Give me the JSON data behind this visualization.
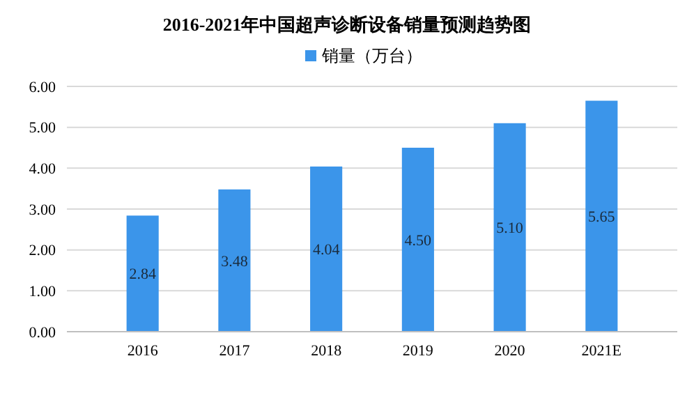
{
  "chart_data": {
    "type": "bar",
    "title": "2016-2021年中国超声诊断设备销量预测趋势图",
    "categories": [
      "2016",
      "2017",
      "2018",
      "2019",
      "2020",
      "2021E"
    ],
    "series": [
      {
        "name": "销量（万台）",
        "color": "#3b95ea",
        "values": [
          2.84,
          3.48,
          4.04,
          4.5,
          5.1,
          5.65
        ],
        "value_labels": [
          "2.84",
          "3.48",
          "4.04",
          "4.50",
          "5.10",
          "5.65"
        ]
      }
    ],
    "ylim": [
      0,
      6
    ],
    "yticks": [
      {
        "value": 0,
        "label": "0.00"
      },
      {
        "value": 1,
        "label": "1.00"
      },
      {
        "value": 2,
        "label": "2.00"
      },
      {
        "value": 3,
        "label": "3.00"
      },
      {
        "value": 4,
        "label": "4.00"
      },
      {
        "value": 5,
        "label": "5.00"
      },
      {
        "value": 6,
        "label": "6.00"
      }
    ],
    "grid": "y",
    "legend": "top"
  }
}
